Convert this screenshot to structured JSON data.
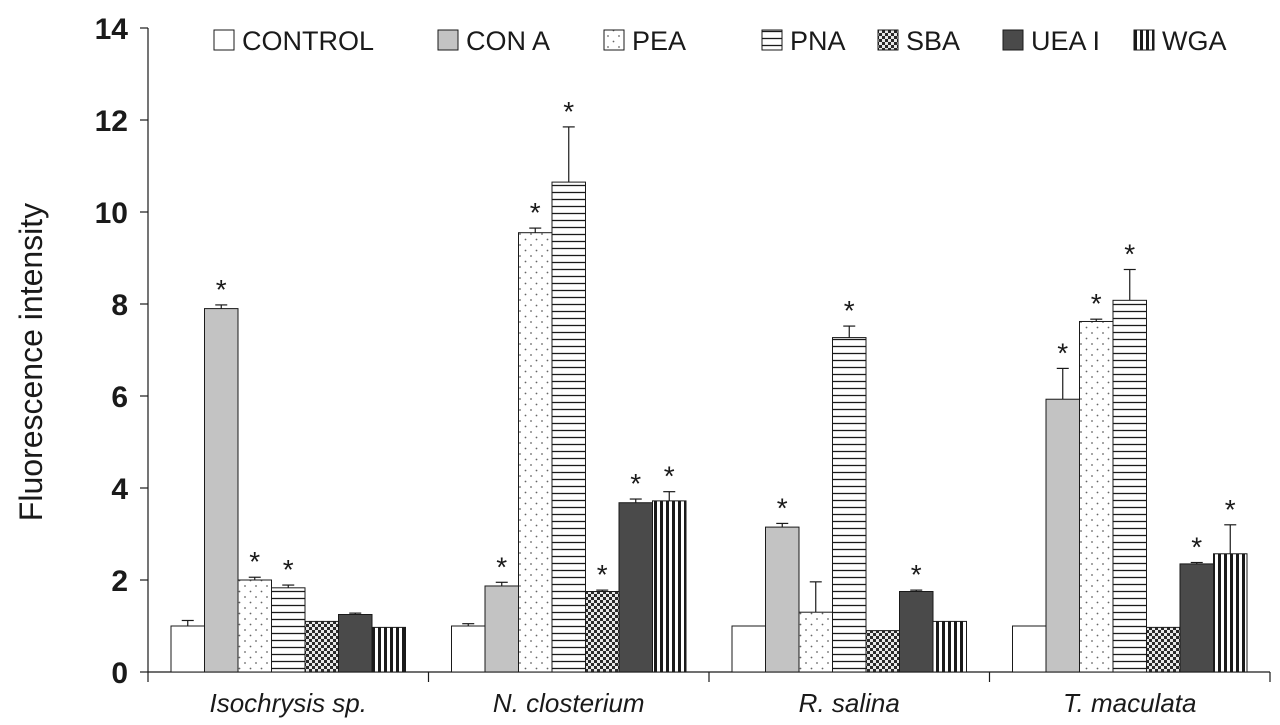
{
  "chart_data": {
    "type": "bar",
    "title": "",
    "xlabel": "",
    "ylabel": "Fluorescence intensity",
    "ylim": [
      0,
      14
    ],
    "yticks": [
      0,
      2,
      4,
      6,
      8,
      10,
      12,
      14
    ],
    "grid": false,
    "legend_position": "top",
    "categories": [
      "Isochrysis sp.",
      "N. closterium",
      "R. salina",
      "T. maculata"
    ],
    "series": [
      {
        "name": "CONTROL",
        "pattern": "white",
        "values": [
          1.0,
          1.0,
          1.0,
          1.0
        ],
        "errors": [
          0.12,
          0.05,
          0.0,
          0.0
        ],
        "significant": [
          false,
          false,
          false,
          false
        ]
      },
      {
        "name": "CON A",
        "pattern": "lightgray",
        "values": [
          7.9,
          1.87,
          3.15,
          5.93
        ],
        "errors": [
          0.08,
          0.08,
          0.08,
          0.67
        ],
        "significant": [
          true,
          true,
          true,
          true
        ]
      },
      {
        "name": "PEA",
        "pattern": "dots",
        "values": [
          2.0,
          9.55,
          1.3,
          7.62
        ],
        "errors": [
          0.06,
          0.1,
          0.66,
          0.05
        ],
        "significant": [
          true,
          true,
          false,
          true
        ]
      },
      {
        "name": "PNA",
        "pattern": "hlines",
        "values": [
          1.83,
          10.65,
          7.27,
          8.08
        ],
        "errors": [
          0.06,
          1.2,
          0.25,
          0.67
        ],
        "significant": [
          true,
          true,
          true,
          true
        ]
      },
      {
        "name": "SBA",
        "pattern": "checker",
        "values": [
          1.1,
          1.75,
          0.9,
          0.97
        ],
        "errors": [
          0.0,
          0.03,
          0.0,
          0.0
        ],
        "significant": [
          false,
          true,
          false,
          false
        ]
      },
      {
        "name": "UEA I",
        "pattern": "darkgray",
        "values": [
          1.25,
          3.68,
          1.75,
          2.35
        ],
        "errors": [
          0.03,
          0.08,
          0.03,
          0.03
        ],
        "significant": [
          false,
          true,
          true,
          true
        ]
      },
      {
        "name": "WGA",
        "pattern": "vlines",
        "values": [
          0.97,
          3.72,
          1.1,
          2.57
        ],
        "errors": [
          0.0,
          0.2,
          0.0,
          0.63
        ],
        "significant": [
          false,
          true,
          false,
          true
        ]
      }
    ],
    "significance_marker": "*"
  }
}
